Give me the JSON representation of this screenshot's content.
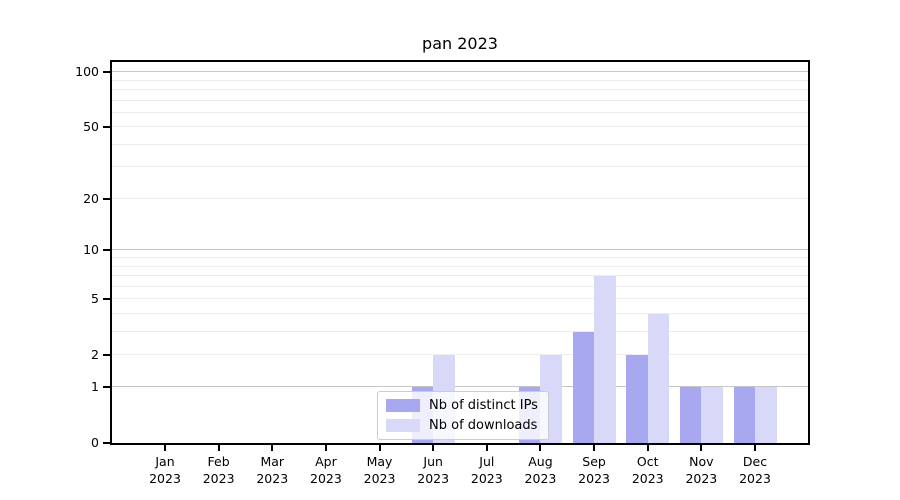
{
  "chart_data": {
    "type": "bar",
    "title": "pan 2023",
    "categories": [
      {
        "label": "Jan",
        "year": "2023"
      },
      {
        "label": "Feb",
        "year": "2023"
      },
      {
        "label": "Mar",
        "year": "2023"
      },
      {
        "label": "Apr",
        "year": "2023"
      },
      {
        "label": "May",
        "year": "2023"
      },
      {
        "label": "Jun",
        "year": "2023"
      },
      {
        "label": "Jul",
        "year": "2023"
      },
      {
        "label": "Aug",
        "year": "2023"
      },
      {
        "label": "Sep",
        "year": "2023"
      },
      {
        "label": "Oct",
        "year": "2023"
      },
      {
        "label": "Nov",
        "year": "2023"
      },
      {
        "label": "Dec",
        "year": "2023"
      }
    ],
    "series": [
      {
        "name": "Nb of distinct IPs",
        "color": "#a8a8f0",
        "values": [
          0,
          0,
          0,
          0,
          0,
          1,
          0,
          1,
          3,
          2,
          1,
          1
        ]
      },
      {
        "name": "Nb of downloads",
        "color": "#d8d8f8",
        "values": [
          0,
          0,
          0,
          0,
          0,
          2,
          0,
          2,
          7,
          4,
          1,
          1
        ]
      }
    ],
    "xlabel": "",
    "ylabel": "",
    "scale": "log1p",
    "ylim": [
      0,
      114
    ],
    "yticks": [
      0,
      1,
      2,
      5,
      10,
      20,
      50,
      100
    ],
    "grid_minor_values": [
      2,
      3,
      4,
      5,
      6,
      7,
      8,
      9,
      20,
      30,
      40,
      50,
      60,
      70,
      80,
      90
    ],
    "grid_major_values": [
      1,
      10,
      100
    ],
    "legend_position": "lower center",
    "colors": {
      "spine": "#000000",
      "grid_minor": "#ededed",
      "grid_major": "#c6c6c6",
      "background": "#ffffff",
      "text": "#000000"
    }
  }
}
